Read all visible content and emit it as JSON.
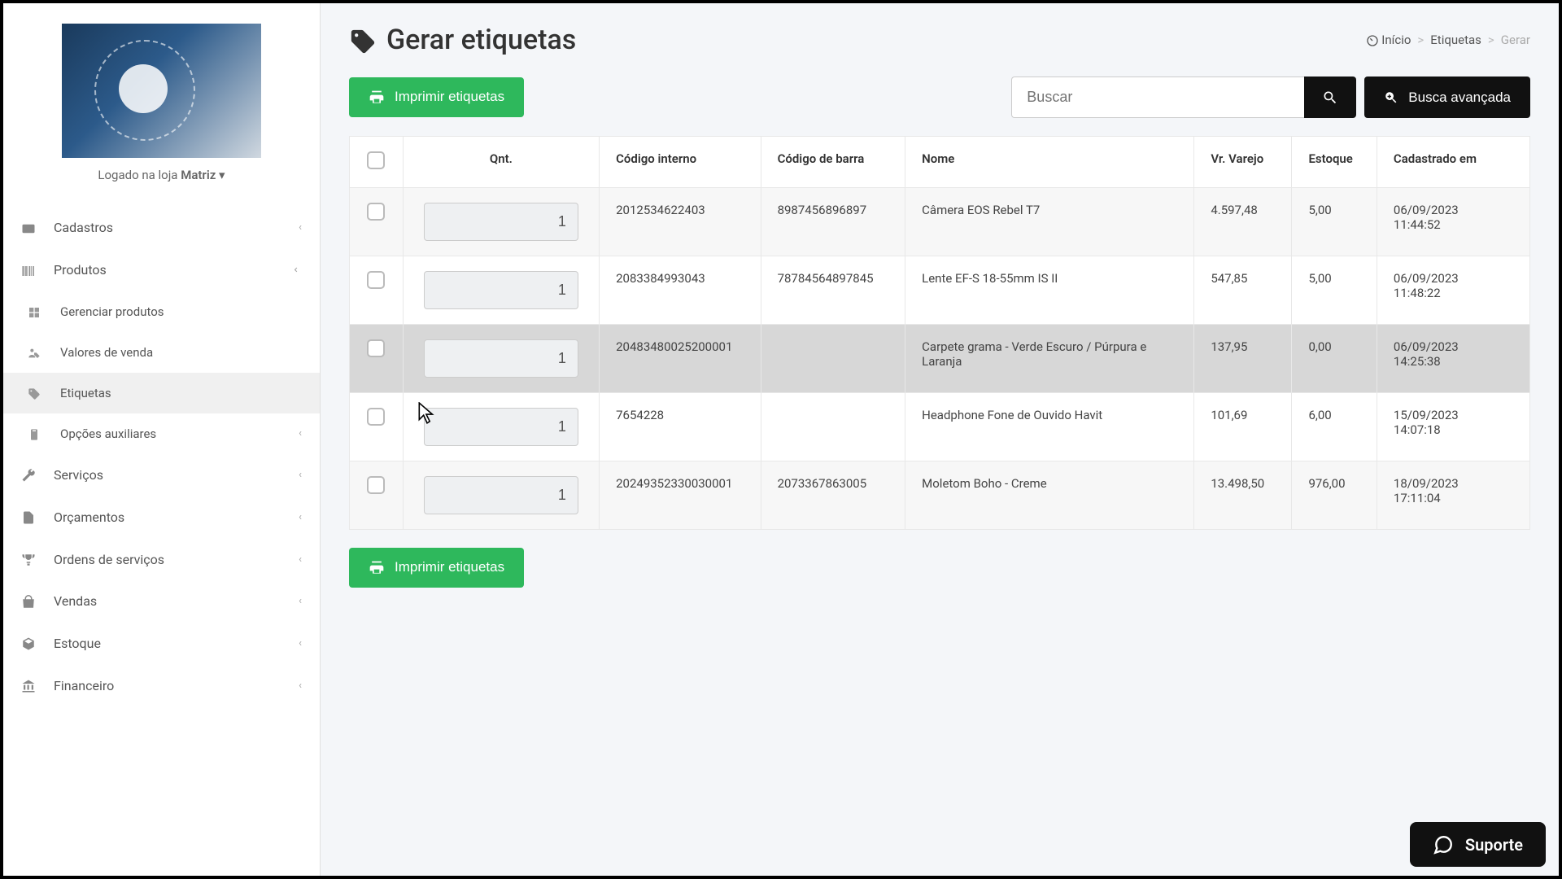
{
  "sidebar": {
    "logged_prefix": "Logado na loja ",
    "logged_store": "Matriz",
    "items": [
      {
        "label": "Cadastros",
        "icon": "id-card",
        "expandable": true
      },
      {
        "label": "Produtos",
        "icon": "barcode",
        "expandable": true,
        "expanded": true,
        "children": [
          {
            "label": "Gerenciar produtos",
            "icon": "boxes"
          },
          {
            "label": "Valores de venda",
            "icon": "price-tag-user"
          },
          {
            "label": "Etiquetas",
            "icon": "tag",
            "active": true
          },
          {
            "label": "Opções auxiliares",
            "icon": "clipboard",
            "expandable": true
          }
        ]
      },
      {
        "label": "Serviços",
        "icon": "wrench",
        "expandable": true
      },
      {
        "label": "Orçamentos",
        "icon": "file",
        "expandable": true
      },
      {
        "label": "Ordens de serviços",
        "icon": "trophy",
        "expandable": true
      },
      {
        "label": "Vendas",
        "icon": "bag",
        "expandable": true
      },
      {
        "label": "Estoque",
        "icon": "cube",
        "expandable": true
      },
      {
        "label": "Financeiro",
        "icon": "bank",
        "expandable": true
      }
    ]
  },
  "header": {
    "title": "Gerar etiquetas",
    "breadcrumbs": [
      {
        "label": "Início",
        "icon": "dashboard"
      },
      {
        "label": "Etiquetas"
      },
      {
        "label": "Gerar",
        "muted": true
      }
    ]
  },
  "actions": {
    "print_label": "Imprimir etiquetas",
    "search_placeholder": "Buscar",
    "advanced_search": "Busca avançada"
  },
  "table": {
    "columns": [
      "",
      "Qnt.",
      "Código interno",
      "Código de barra",
      "Nome",
      "Vr. Varejo",
      "Estoque",
      "Cadastrado em"
    ],
    "rows": [
      {
        "qnt": "1",
        "cod_int": "2012534622403",
        "cod_bar": "8987456896897",
        "nome": "Câmera EOS Rebel T7",
        "vr": "4.597,48",
        "est": "5,00",
        "cad": "06/09/2023 11:44:52"
      },
      {
        "qnt": "1",
        "cod_int": "2083384993043",
        "cod_bar": "78784564897845",
        "nome": "Lente EF-S 18-55mm IS II",
        "vr": "547,85",
        "est": "5,00",
        "cad": "06/09/2023 11:48:22"
      },
      {
        "qnt": "1",
        "cod_int": "20483480025200001",
        "cod_bar": "",
        "nome": "Carpete grama - Verde Escuro / Púrpura e Laranja",
        "vr": "137,95",
        "est": "0,00",
        "cad": "06/09/2023 14:25:38",
        "hovered": true
      },
      {
        "qnt": "1",
        "cod_int": "7654228",
        "cod_bar": "",
        "nome": "Headphone Fone de Ouvido Havit",
        "vr": "101,69",
        "est": "6,00",
        "cad": "15/09/2023 14:07:18"
      },
      {
        "qnt": "1",
        "cod_int": "20249352330030001",
        "cod_bar": "2073367863005",
        "nome": "Moletom Boho - Creme",
        "vr": "13.498,50",
        "est": "976,00",
        "cad": "18/09/2023 17:11:04"
      }
    ]
  },
  "support": {
    "label": "Suporte"
  },
  "colors": {
    "green": "#2eb85c",
    "black": "#111111",
    "row_alt": "#f7f7f7",
    "row_hover": "#d7d7d7",
    "border": "#e3e3e3"
  }
}
